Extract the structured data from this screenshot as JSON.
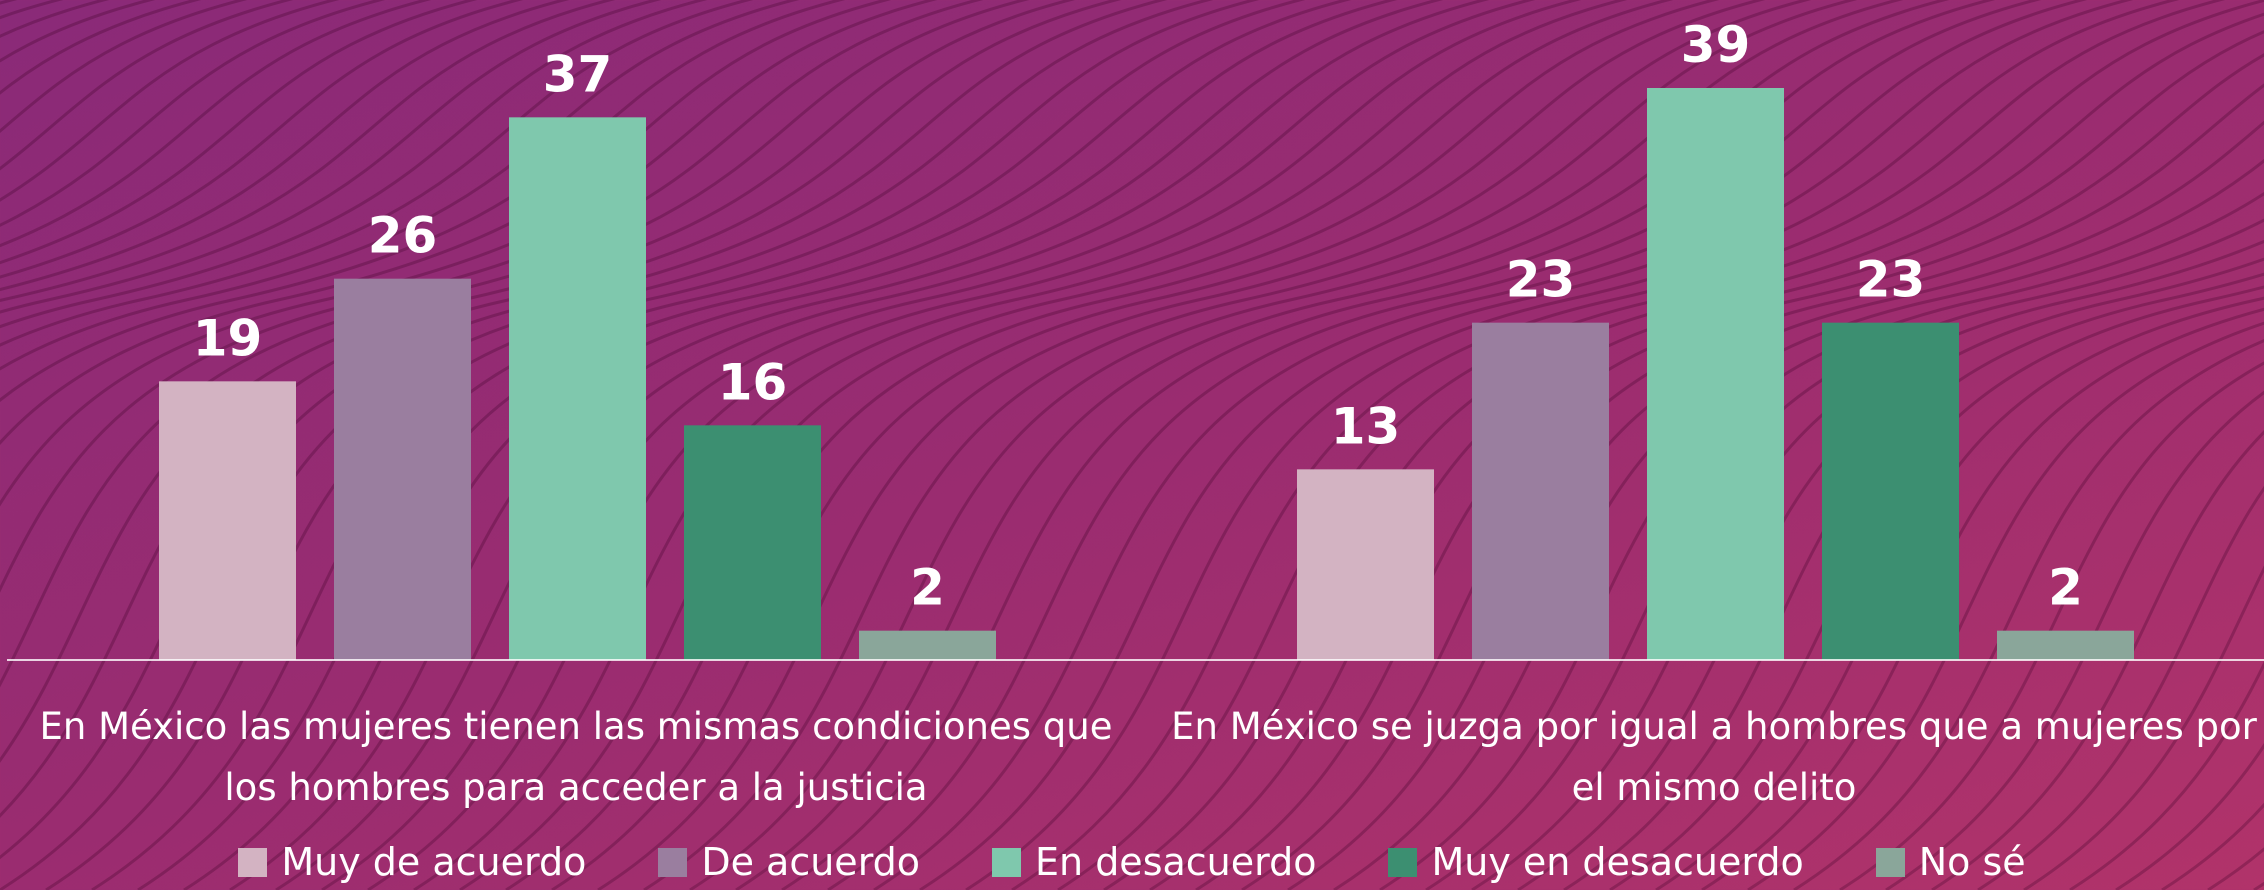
{
  "chart_data": {
    "type": "bar",
    "categories": [
      "En México las mujeres tienen las mismas condiciones que los hombres para acceder a la justicia",
      "En México se juzga por igual a hombres que a mujeres por el mismo delito"
    ],
    "series": [
      {
        "name": "Muy de acuerdo",
        "color": "#d3b3c2",
        "values": [
          19,
          13
        ]
      },
      {
        "name": "De acuerdo",
        "color": "#9a7e9f",
        "values": [
          26,
          23
        ]
      },
      {
        "name": "En desacuerdo",
        "color": "#7fc8ad",
        "values": [
          37,
          39
        ]
      },
      {
        "name": "Muy en desacuerdo",
        "color": "#3c8f71",
        "values": [
          16,
          23
        ]
      },
      {
        "name": "No sé",
        "color": "#8aa69a",
        "values": [
          2,
          2
        ]
      }
    ],
    "ylim": [
      0,
      45
    ],
    "legend": "bottom"
  }
}
